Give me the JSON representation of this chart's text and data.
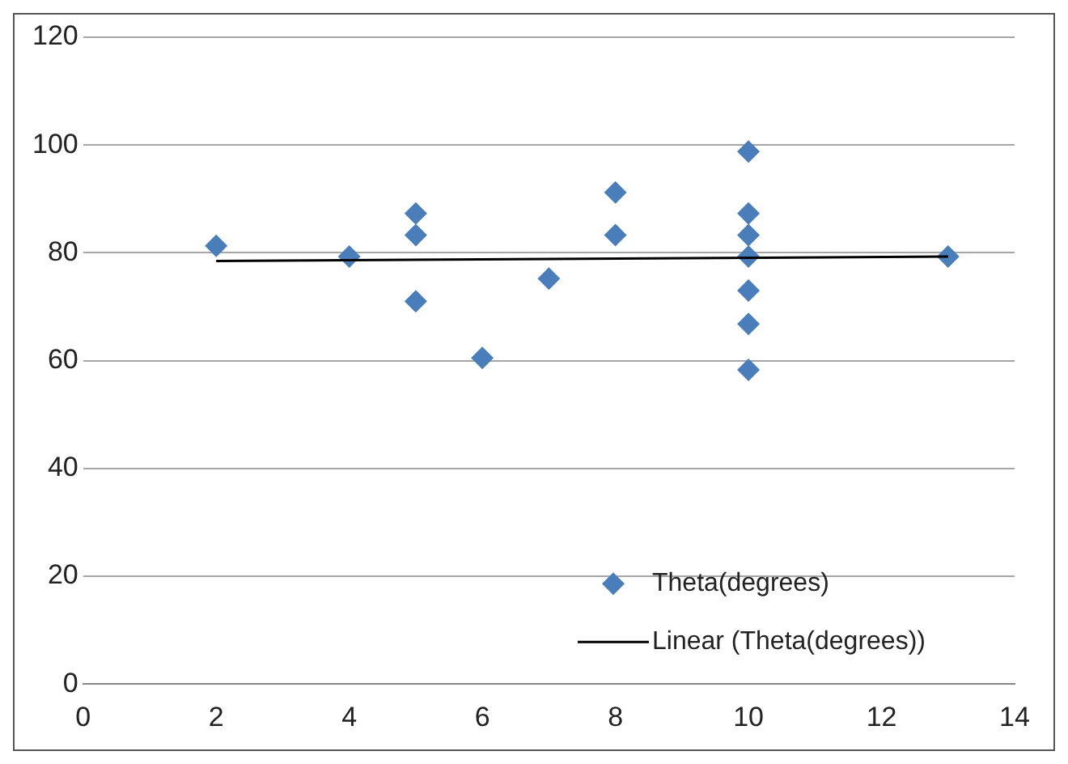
{
  "chart_data": {
    "type": "scatter",
    "xlim": [
      0,
      14
    ],
    "xticks": [
      0,
      2,
      4,
      6,
      8,
      10,
      12,
      14
    ],
    "ylim": [
      0,
      120
    ],
    "yticks": [
      0,
      20,
      40,
      60,
      80,
      100,
      120
    ],
    "grid": "y",
    "legend": "bottom right",
    "marker": "diamond",
    "series": [
      {
        "name": "Theta(degrees)",
        "color": "#4a7ebb",
        "x": [
          2,
          4,
          5,
          5,
          5,
          6,
          7,
          8,
          8,
          10,
          10,
          10,
          10,
          10,
          10,
          10,
          13
        ],
        "values": [
          81.3,
          79.3,
          87.3,
          83.3,
          71,
          60.5,
          75.2,
          91.2,
          83.3,
          98.8,
          87.3,
          83.3,
          79.3,
          73,
          66.8,
          58.3,
          79.3
        ]
      },
      {
        "name": "Linear (Theta(degrees))",
        "type": "line",
        "color": "#000000",
        "marker": "none",
        "x": [
          2,
          13
        ],
        "values": [
          78.5,
          79.3
        ]
      }
    ]
  }
}
